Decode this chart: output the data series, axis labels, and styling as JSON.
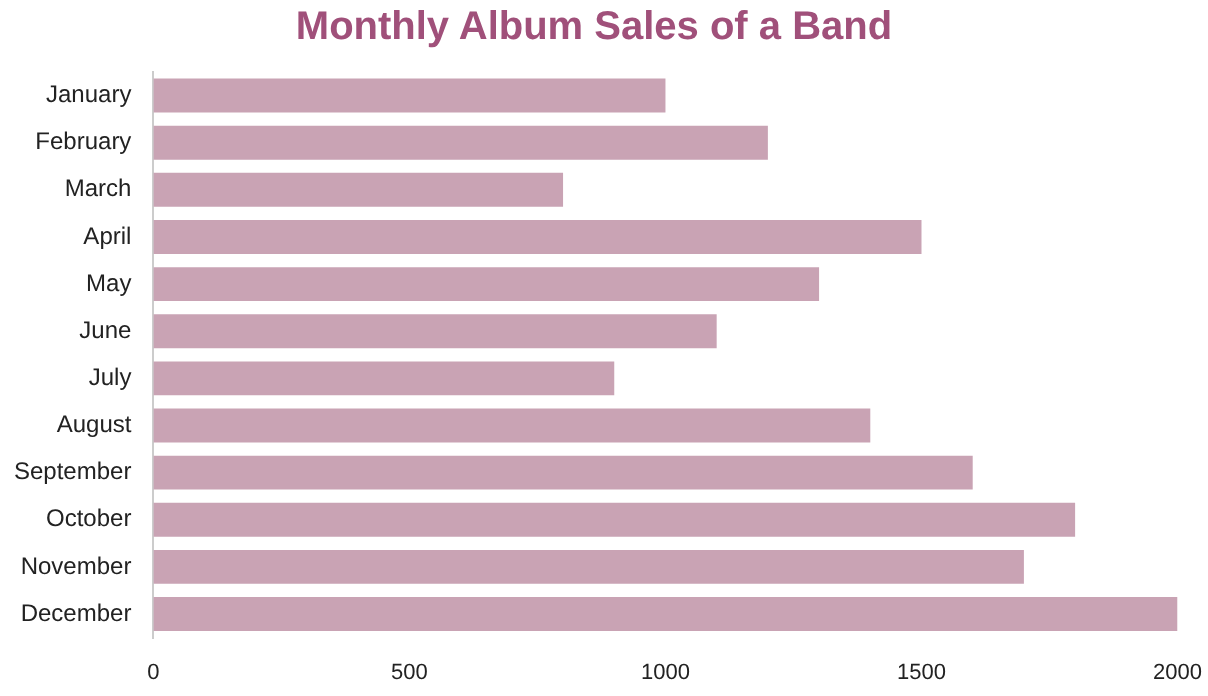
{
  "chart_data": {
    "type": "bar",
    "orientation": "horizontal",
    "title": "Monthly Album Sales of a Band",
    "categories": [
      "January",
      "February",
      "March",
      "April",
      "May",
      "June",
      "July",
      "August",
      "September",
      "October",
      "November",
      "December"
    ],
    "values": [
      1000,
      1200,
      800,
      1500,
      1300,
      1100,
      900,
      1400,
      1600,
      1800,
      1700,
      2000
    ],
    "color": "#c9a3b4",
    "xlim": [
      0,
      2000
    ],
    "xticks": [
      0,
      500,
      1000,
      1500,
      2000
    ],
    "grid": false,
    "legend": false
  }
}
